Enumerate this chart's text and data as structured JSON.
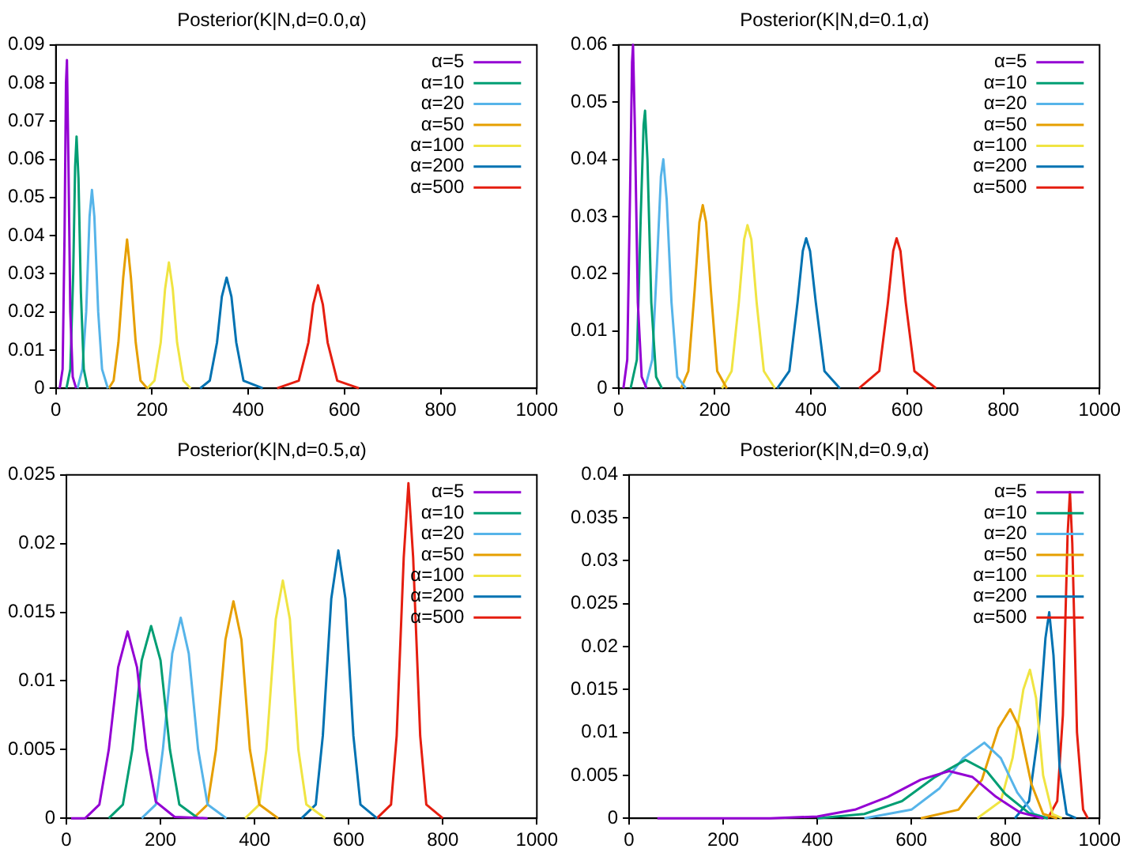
{
  "chart_data": [
    {
      "type": "line",
      "title": "Posterior(K|N,d=0.0,α)",
      "xlim": [
        0,
        1000
      ],
      "xticks": [
        0,
        200,
        400,
        600,
        800,
        1000
      ],
      "ylim": [
        0,
        0.09
      ],
      "yticks": [
        0,
        0.01,
        0.02,
        0.03,
        0.04,
        0.05,
        0.06,
        0.07,
        0.08,
        0.09
      ],
      "grid": false,
      "legend": "top right",
      "marker": "none",
      "series": [
        {
          "name": "α=5",
          "color": "#9400d3",
          "x": [
            8,
            14,
            18,
            21,
            23,
            26,
            30,
            35,
            42
          ],
          "values": [
            0,
            0.005,
            0.04,
            0.08,
            0.086,
            0.06,
            0.02,
            0.003,
            0
          ]
        },
        {
          "name": "α=10",
          "color": "#009e73",
          "x": [
            22,
            30,
            36,
            40,
            43,
            47,
            52,
            58,
            66
          ],
          "values": [
            0,
            0.005,
            0.03,
            0.058,
            0.066,
            0.055,
            0.025,
            0.005,
            0
          ]
        },
        {
          "name": "α=20",
          "color": "#56b4e9",
          "x": [
            45,
            55,
            63,
            70,
            75,
            80,
            88,
            96,
            108
          ],
          "values": [
            0,
            0.005,
            0.02,
            0.045,
            0.052,
            0.045,
            0.02,
            0.005,
            0
          ]
        },
        {
          "name": "α=50",
          "color": "#e69f00",
          "x": [
            110,
            120,
            130,
            140,
            148,
            156,
            166,
            176,
            190
          ],
          "values": [
            0,
            0.002,
            0.012,
            0.029,
            0.039,
            0.029,
            0.012,
            0.002,
            0
          ]
        },
        {
          "name": "α=100",
          "color": "#f0e442",
          "x": [
            190,
            205,
            218,
            227,
            235,
            243,
            252,
            265,
            280
          ],
          "values": [
            0,
            0.002,
            0.012,
            0.026,
            0.033,
            0.026,
            0.012,
            0.002,
            0
          ]
        },
        {
          "name": "α=200",
          "color": "#0072b2",
          "x": [
            300,
            320,
            335,
            345,
            355,
            365,
            375,
            390,
            430
          ],
          "values": [
            0,
            0.002,
            0.012,
            0.024,
            0.029,
            0.024,
            0.012,
            0.002,
            0
          ]
        },
        {
          "name": "α=500",
          "color": "#e51e10",
          "x": [
            460,
            505,
            525,
            535,
            545,
            555,
            565,
            585,
            630
          ],
          "values": [
            0,
            0.002,
            0.012,
            0.022,
            0.027,
            0.022,
            0.012,
            0.002,
            0
          ]
        }
      ]
    },
    {
      "type": "line",
      "title": "Posterior(K|N,d=0.1,α)",
      "xlim": [
        0,
        1000
      ],
      "xticks": [
        0,
        200,
        400,
        600,
        800,
        1000
      ],
      "ylim": [
        0,
        0.06
      ],
      "yticks": [
        0,
        0.01,
        0.02,
        0.03,
        0.04,
        0.05,
        0.06
      ],
      "grid": false,
      "legend": "top right",
      "marker": "none",
      "series": [
        {
          "name": "α=5",
          "color": "#9400d3",
          "x": [
            10,
            18,
            24,
            28,
            30,
            34,
            40,
            48,
            58
          ],
          "values": [
            0,
            0.005,
            0.035,
            0.057,
            0.06,
            0.045,
            0.015,
            0.002,
            0
          ]
        },
        {
          "name": "α=10",
          "color": "#009e73",
          "x": [
            25,
            38,
            46,
            52,
            55,
            60,
            68,
            78,
            90
          ],
          "values": [
            0,
            0.005,
            0.03,
            0.046,
            0.0485,
            0.04,
            0.015,
            0.002,
            0
          ]
        },
        {
          "name": "α=20",
          "color": "#56b4e9",
          "x": [
            55,
            70,
            80,
            88,
            93,
            100,
            110,
            122,
            140
          ],
          "values": [
            0,
            0.005,
            0.022,
            0.037,
            0.04,
            0.033,
            0.015,
            0.002,
            0
          ]
        },
        {
          "name": "α=50",
          "color": "#e69f00",
          "x": [
            130,
            145,
            158,
            168,
            175,
            182,
            192,
            205,
            225
          ],
          "values": [
            0,
            0.003,
            0.017,
            0.029,
            0.032,
            0.029,
            0.017,
            0.003,
            0
          ]
        },
        {
          "name": "α=100",
          "color": "#f0e442",
          "x": [
            215,
            235,
            250,
            261,
            268,
            276,
            287,
            302,
            325
          ],
          "values": [
            0,
            0.003,
            0.015,
            0.026,
            0.0285,
            0.026,
            0.015,
            0.003,
            0
          ]
        },
        {
          "name": "α=200",
          "color": "#0072b2",
          "x": [
            330,
            355,
            372,
            383,
            390,
            398,
            410,
            428,
            460
          ],
          "values": [
            0,
            0.003,
            0.015,
            0.024,
            0.0262,
            0.024,
            0.015,
            0.003,
            0
          ]
        },
        {
          "name": "α=500",
          "color": "#e51e10",
          "x": [
            500,
            542,
            560,
            571,
            578,
            586,
            597,
            615,
            660
          ],
          "values": [
            0,
            0.003,
            0.015,
            0.024,
            0.0262,
            0.024,
            0.015,
            0.003,
            0
          ]
        }
      ]
    },
    {
      "type": "line",
      "title": "Posterior(K|N,d=0.5,α)",
      "xlim": [
        0,
        1000
      ],
      "xticks": [
        0,
        200,
        400,
        600,
        800,
        1000
      ],
      "ylim": [
        0,
        0.025
      ],
      "yticks": [
        0,
        0.005,
        0.01,
        0.015,
        0.02,
        0.025
      ],
      "grid": false,
      "legend": "top right",
      "marker": "none",
      "series": [
        {
          "name": "α=5",
          "color": "#9400d3",
          "x": [
            10,
            40,
            70,
            90,
            110,
            130,
            150,
            170,
            190,
            230,
            300
          ],
          "values": [
            0,
            0,
            0.001,
            0.005,
            0.011,
            0.0136,
            0.011,
            0.005,
            0.0012,
            0.0001,
            0
          ]
        },
        {
          "name": "α=10",
          "color": "#009e73",
          "x": [
            90,
            120,
            140,
            160,
            180,
            200,
            220,
            240,
            280
          ],
          "values": [
            0,
            0.001,
            0.005,
            0.0115,
            0.014,
            0.0115,
            0.005,
            0.001,
            0
          ]
        },
        {
          "name": "α=20",
          "color": "#56b4e9",
          "x": [
            160,
            190,
            205,
            225,
            243,
            260,
            280,
            300,
            340
          ],
          "values": [
            0,
            0.001,
            0.005,
            0.012,
            0.0146,
            0.012,
            0.005,
            0.001,
            0
          ]
        },
        {
          "name": "α=50",
          "color": "#e69f00",
          "x": [
            270,
            300,
            318,
            338,
            355,
            372,
            390,
            410,
            450
          ],
          "values": [
            0,
            0.001,
            0.005,
            0.013,
            0.0158,
            0.013,
            0.005,
            0.001,
            0
          ]
        },
        {
          "name": "α=100",
          "color": "#f0e442",
          "x": [
            380,
            410,
            425,
            445,
            460,
            475,
            493,
            510,
            550
          ],
          "values": [
            0,
            0.001,
            0.005,
            0.0145,
            0.0173,
            0.0145,
            0.005,
            0.001,
            0
          ]
        },
        {
          "name": "α=200",
          "color": "#0072b2",
          "x": [
            500,
            530,
            545,
            563,
            578,
            593,
            610,
            625,
            660
          ],
          "values": [
            0,
            0.001,
            0.006,
            0.016,
            0.0195,
            0.016,
            0.006,
            0.001,
            0
          ]
        },
        {
          "name": "α=500",
          "color": "#e51e10",
          "x": [
            660,
            690,
            702,
            717,
            727,
            737,
            752,
            765,
            800
          ],
          "values": [
            0,
            0.001,
            0.006,
            0.019,
            0.0244,
            0.019,
            0.006,
            0.001,
            0
          ]
        }
      ]
    },
    {
      "type": "line",
      "title": "Posterior(K|N,d=0.9,α)",
      "xlim": [
        0,
        1000
      ],
      "xticks": [
        0,
        200,
        400,
        600,
        800,
        1000
      ],
      "ylim": [
        0,
        0.04
      ],
      "yticks": [
        0,
        0.005,
        0.01,
        0.015,
        0.02,
        0.025,
        0.03,
        0.035,
        0.04
      ],
      "grid": false,
      "legend": "top right",
      "marker": "none",
      "series": [
        {
          "name": "α=5",
          "color": "#9400d3",
          "x": [
            60,
            300,
            400,
            480,
            550,
            620,
            680,
            730,
            780,
            830,
            880
          ],
          "values": [
            0,
            0,
            0.0002,
            0.001,
            0.0025,
            0.0045,
            0.0055,
            0.0048,
            0.0025,
            0.0007,
            0
          ]
        },
        {
          "name": "α=10",
          "color": "#009e73",
          "x": [
            400,
            500,
            580,
            650,
            715,
            760,
            800,
            850,
            890
          ],
          "values": [
            0,
            0.0005,
            0.002,
            0.0048,
            0.0068,
            0.0055,
            0.0028,
            0.0006,
            0
          ]
        },
        {
          "name": "α=20",
          "color": "#56b4e9",
          "x": [
            500,
            600,
            660,
            710,
            755,
            790,
            825,
            860,
            890
          ],
          "values": [
            0,
            0.001,
            0.0035,
            0.007,
            0.0088,
            0.007,
            0.003,
            0.0005,
            0
          ]
        },
        {
          "name": "α=50",
          "color": "#e69f00",
          "x": [
            620,
            700,
            750,
            785,
            810,
            830,
            855,
            880,
            910
          ],
          "values": [
            0,
            0.001,
            0.0045,
            0.0105,
            0.0127,
            0.0105,
            0.004,
            0.0005,
            0
          ]
        },
        {
          "name": "α=100",
          "color": "#f0e442",
          "x": [
            740,
            790,
            815,
            838,
            852,
            865,
            880,
            900,
            920
          ],
          "values": [
            0,
            0.002,
            0.007,
            0.015,
            0.0173,
            0.014,
            0.005,
            0.0005,
            0
          ]
        },
        {
          "name": "α=200",
          "color": "#0072b2",
          "x": [
            820,
            850,
            870,
            885,
            893,
            902,
            915,
            930,
            950
          ],
          "values": [
            0,
            0.002,
            0.01,
            0.021,
            0.024,
            0.019,
            0.006,
            0.0005,
            0
          ]
        },
        {
          "name": "α=500",
          "color": "#e51e10",
          "x": [
            890,
            910,
            922,
            932,
            937,
            942,
            952,
            965,
            975
          ],
          "values": [
            0,
            0.002,
            0.012,
            0.033,
            0.038,
            0.032,
            0.01,
            0.001,
            0
          ]
        }
      ]
    }
  ]
}
